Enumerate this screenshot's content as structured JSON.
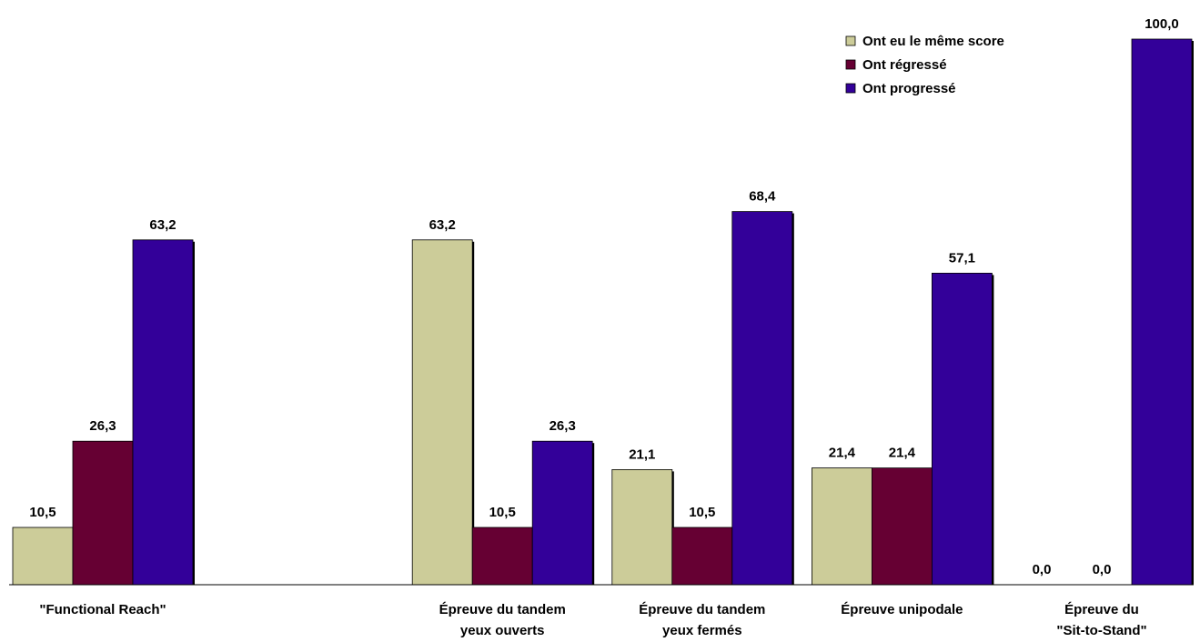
{
  "chart_data": {
    "type": "bar",
    "title": "",
    "xlabel": "",
    "ylabel": "",
    "ylim": [
      0,
      100
    ],
    "grid": false,
    "legend_position": "top-right",
    "categories": [
      [
        "\"Functional Reach\""
      ],
      [],
      [
        "Épreuve du tandem",
        "yeux ouverts"
      ],
      [
        "Épreuve du tandem",
        "yeux fermés"
      ],
      [
        "Épreuve unipodale"
      ],
      [
        "Épreuve du",
        "\"Sit-to-Stand\""
      ]
    ],
    "series": [
      {
        "name": "Ont eu le même score",
        "color": "#CCCC99",
        "values": [
          10.5,
          null,
          63.2,
          21.1,
          21.4,
          0.0
        ]
      },
      {
        "name": "Ont régressé",
        "color": "#660033",
        "values": [
          26.3,
          null,
          10.5,
          10.5,
          21.4,
          0.0
        ]
      },
      {
        "name": "Ont progressé",
        "color": "#330099",
        "values": [
          63.2,
          null,
          26.3,
          68.4,
          57.1,
          100.0
        ]
      }
    ],
    "value_labels": [
      [
        "10,5",
        null,
        "63,2",
        "21,1",
        "21,4",
        "0,0"
      ],
      [
        "26,3",
        null,
        "10,5",
        "10,5",
        "21,4",
        "0,0"
      ],
      [
        "63,2",
        null,
        "26,3",
        "68,4",
        "57,1",
        "100,0"
      ]
    ]
  }
}
